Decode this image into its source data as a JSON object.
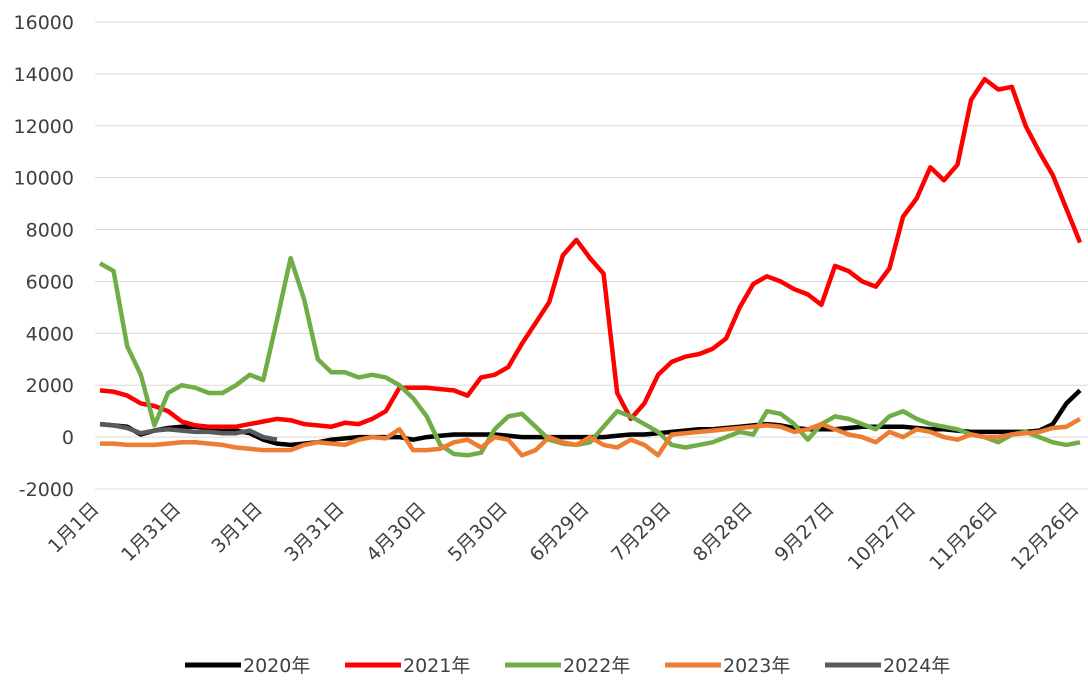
{
  "chart_data": {
    "type": "line",
    "categories": [
      "1月1日",
      null,
      null,
      null,
      null,
      null,
      "1月31日",
      null,
      null,
      null,
      null,
      null,
      "3月1日",
      null,
      null,
      null,
      null,
      null,
      "3月31日",
      null,
      null,
      null,
      null,
      null,
      "4月30日",
      null,
      null,
      null,
      null,
      null,
      "5月30日",
      null,
      null,
      null,
      null,
      null,
      "6月29日",
      null,
      null,
      null,
      null,
      null,
      "7月29日",
      null,
      null,
      null,
      null,
      null,
      "8月28日",
      null,
      null,
      null,
      null,
      null,
      "9月27日",
      null,
      null,
      null,
      null,
      null,
      "10月27日",
      null,
      null,
      null,
      null,
      null,
      "11月26日",
      null,
      null,
      null,
      null,
      null,
      "12月26日"
    ],
    "ylim": [
      -2000,
      16000
    ],
    "yticks": [
      -2000,
      0,
      2000,
      4000,
      6000,
      8000,
      10000,
      12000,
      14000,
      16000
    ],
    "grid": true,
    "legend": "bottom",
    "series": [
      {
        "name": "2020年",
        "color": "#000000",
        "values": [
          500,
          450,
          400,
          100,
          250,
          350,
          400,
          400,
          350,
          300,
          250,
          150,
          -100,
          -250,
          -300,
          -250,
          -200,
          -100,
          -50,
          0,
          0,
          0,
          0,
          -100,
          0,
          50,
          100,
          100,
          100,
          100,
          50,
          0,
          0,
          0,
          0,
          0,
          0,
          0,
          50,
          100,
          100,
          150,
          200,
          250,
          300,
          300,
          350,
          400,
          450,
          500,
          450,
          350,
          300,
          300,
          300,
          350,
          400,
          400,
          400,
          400,
          350,
          300,
          300,
          250,
          200,
          200,
          200,
          200,
          200,
          250,
          500,
          1300,
          1800
        ]
      },
      {
        "name": "2021年",
        "color": "#ff0000",
        "values": [
          1800,
          1750,
          1600,
          1300,
          1200,
          1000,
          600,
          450,
          400,
          400,
          400,
          500,
          600,
          700,
          650,
          500,
          450,
          400,
          550,
          500,
          700,
          1000,
          1900,
          1900,
          1900,
          1850,
          1800,
          1600,
          2300,
          2400,
          2700,
          3600,
          4400,
          5200,
          7000,
          7600,
          6900,
          6300,
          1700,
          700,
          1300,
          2400,
          2900,
          3100,
          3200,
          3400,
          3800,
          5000,
          5900,
          6200,
          6000,
          5700,
          5500,
          5100,
          6600,
          6400,
          6000,
          5800,
          6500,
          8500,
          9200,
          10400,
          9900,
          10500,
          13000,
          13800,
          13400,
          13500,
          12000,
          11000,
          10100,
          8800,
          7500
        ]
      },
      {
        "name": "2022年",
        "color": "#70ad47",
        "values": [
          6700,
          6400,
          3500,
          2400,
          450,
          1700,
          2000,
          1900,
          1700,
          1700,
          2000,
          2400,
          2200,
          4500,
          6900,
          5300,
          3000,
          2500,
          2500,
          2300,
          2400,
          2300,
          2000,
          1500,
          800,
          -300,
          -650,
          -700,
          -600,
          300,
          800,
          900,
          400,
          -100,
          -250,
          -300,
          -200,
          400,
          1000,
          800,
          500,
          200,
          -300,
          -400,
          -300,
          -200,
          0,
          200,
          100,
          1000,
          900,
          500,
          -100,
          500,
          800,
          700,
          500,
          300,
          800,
          1000,
          700,
          500,
          400,
          300,
          100,
          0,
          -200,
          100,
          200,
          0,
          -200,
          -300,
          -200
        ]
      },
      {
        "name": "2023年",
        "color": "#ed7d31",
        "values": [
          -250,
          -250,
          -300,
          -300,
          -300,
          -250,
          -200,
          -200,
          -250,
          -300,
          -400,
          -450,
          -500,
          -500,
          -500,
          -300,
          -200,
          -250,
          -300,
          -100,
          0,
          -50,
          300,
          -500,
          -500,
          -450,
          -200,
          -100,
          -400,
          0,
          -100,
          -700,
          -500,
          0,
          -200,
          -300,
          0,
          -300,
          -400,
          -100,
          -300,
          -700,
          100,
          150,
          200,
          250,
          300,
          350,
          400,
          450,
          400,
          200,
          300,
          500,
          300,
          100,
          0,
          -200,
          200,
          0,
          300,
          200,
          0,
          -100,
          100,
          0,
          0,
          100,
          150,
          200,
          350,
          400,
          700
        ]
      },
      {
        "name": "2024年",
        "color": "#595959",
        "values": [
          500,
          450,
          350,
          150,
          250,
          300,
          250,
          200,
          200,
          150,
          150,
          250,
          0,
          -100,
          null,
          null,
          null,
          null,
          null,
          null,
          null,
          null,
          null,
          null,
          null,
          null,
          null,
          null,
          null,
          null,
          null,
          null,
          null,
          null,
          null,
          null,
          null,
          null,
          null,
          null,
          null,
          null,
          null,
          null,
          null,
          null,
          null,
          null,
          null,
          null,
          null,
          null,
          null,
          null,
          null,
          null,
          null,
          null,
          null,
          null,
          null,
          null,
          null,
          null,
          null,
          null,
          null,
          null,
          null,
          null,
          null,
          null,
          null
        ]
      }
    ]
  }
}
